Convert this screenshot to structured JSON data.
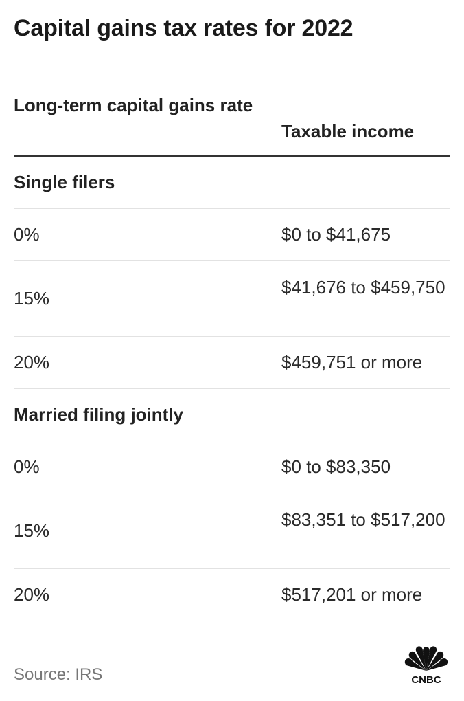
{
  "title": "Capital gains tax rates for 2022",
  "columns": {
    "rate": "Long-term capital gains rate",
    "income": "Taxable income"
  },
  "sections": [
    {
      "label": "Single filers",
      "rows": [
        {
          "rate": "0%",
          "income": "$0 to $41,675"
        },
        {
          "rate": "15%",
          "income": "$41,676 to $459,750"
        },
        {
          "rate": "20%",
          "income": "$459,751 or more"
        }
      ]
    },
    {
      "label": "Married filing jointly",
      "rows": [
        {
          "rate": "0%",
          "income": "$0 to $83,350"
        },
        {
          "rate": "15%",
          "income": "$83,351 to $517,200"
        },
        {
          "rate": "20%",
          "income": "$517,201 or more"
        }
      ]
    }
  ],
  "source": "Source: IRS",
  "logo": {
    "icon": "cnbc-peacock-logo",
    "text": "CNBC"
  }
}
